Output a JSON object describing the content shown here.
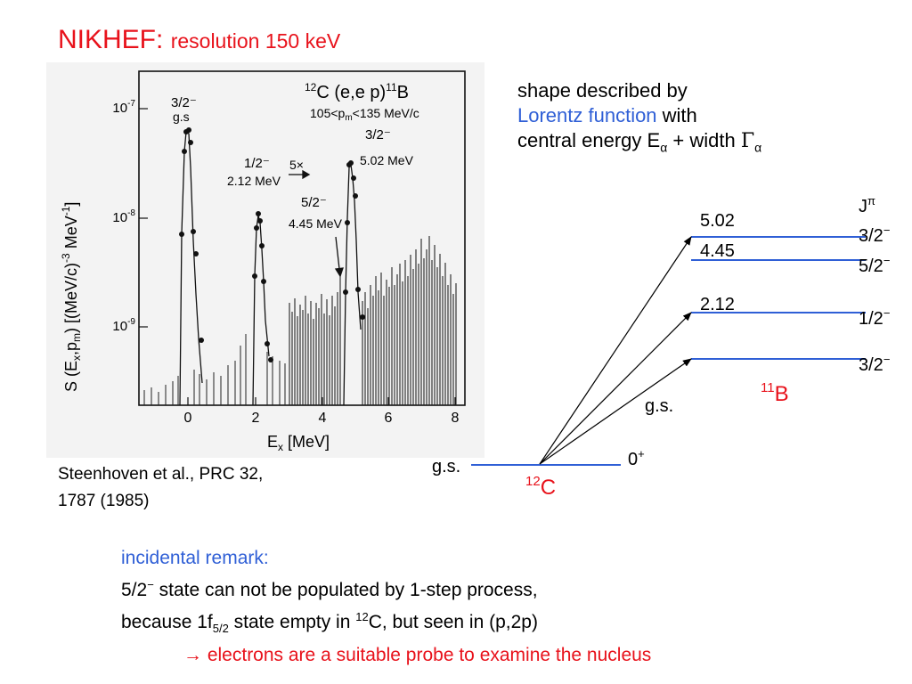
{
  "title": {
    "main": "NIKHEF:",
    "sub": "resolution 150 keV"
  },
  "figure": {
    "reaction_c": "C (e,e p)",
    "reaction_b": "B",
    "mass_12": "12",
    "mass_11": "11",
    "pm_range": "105<p",
    "pm_sub": "m",
    "pm_range_end": "<135 MeV/c",
    "ylabel": "S (E",
    "ylabel_x": "x",
    "ylabel_comma": ",",
    "ylabel_p": "p",
    "ylabel_m": "m",
    "ylabel_units": ") [(MeV/c)",
    "ylabel_exp1": "-3",
    "ylabel_mev": " MeV",
    "ylabel_exp2": "-1",
    "ylabel_close": "]",
    "xlabel": "E",
    "xlabel_sub": "x",
    "xlabel_units": " [MeV]",
    "y_ticks": [
      {
        "mant": "10",
        "exp": "-7"
      },
      {
        "mant": "10",
        "exp": "-8"
      },
      {
        "mant": "10",
        "exp": "-9"
      }
    ],
    "x_ticks": [
      "0",
      "2",
      "4",
      "6",
      "8"
    ],
    "annotations": {
      "gs_label": "g.s",
      "scale_factor": "5×",
      "e212": "2.12 MeV",
      "e445": "4.45 MeV",
      "e502": "5.02 MeV"
    }
  },
  "description": {
    "line1": "shape described by",
    "line2_blue": "Lorentz function",
    "line2_rest": " with",
    "line3": "central energy E",
    "line3_sub1": "α",
    "line3_mid": " + width ",
    "line3_gamma": "Γ",
    "line3_sub2": "α"
  },
  "citation": {
    "line1": "Steenhoven et al., PRC 32,",
    "line2": "1787  (1985)"
  },
  "levels": {
    "jpi": "J",
    "jpi_sup": "π",
    "b11_levels": [
      {
        "energy": "5.02",
        "spin": "3/2",
        "parity": "−"
      },
      {
        "energy": "4.45",
        "spin": "5/2",
        "parity": "−"
      },
      {
        "energy": "2.12",
        "spin": "1/2",
        "parity": "−"
      },
      {
        "energy": "g.s.",
        "spin": "3/2",
        "parity": "−"
      }
    ],
    "b11_mass": "11",
    "b11_symbol": "B",
    "c12_gs": "g.s.",
    "c12_spin": "0",
    "c12_parity": "+",
    "c12_mass": "12",
    "c12_symbol": "C"
  },
  "remark": {
    "heading": "incidental remark:",
    "line1_a": "5/2",
    "line1_sup": "−",
    "line1_b": " state can not be populated by 1-step process,",
    "line2_a": "because 1f",
    "line2_sub": "5/2",
    "line2_b": " state empty in ",
    "line2_sup": "12",
    "line2_c": "C, but seen in (p,2p)",
    "line3_arrow": "→",
    "line3_text": " electrons are a suitable probe to examine the nucleus"
  }
}
